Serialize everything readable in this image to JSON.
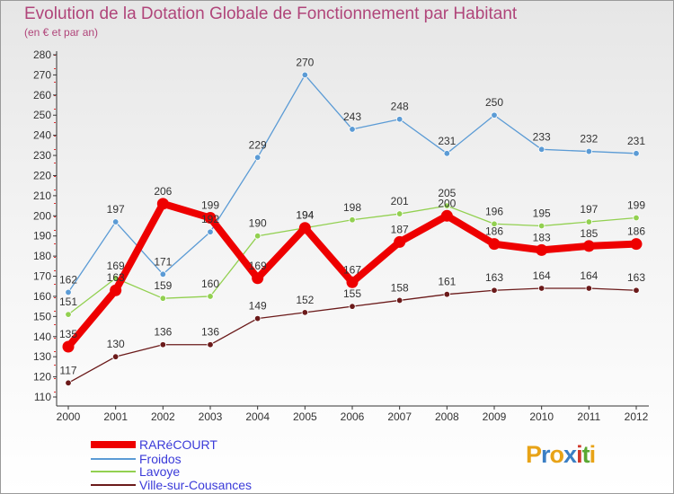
{
  "chart_data": {
    "type": "line",
    "title": "Evolution de la Dotation Globale de Fonctionnement par Habitant",
    "subtitle": "(en € et par an)",
    "x": [
      "2000",
      "2001",
      "2002",
      "2003",
      "2004",
      "2005",
      "2006",
      "2007",
      "2008",
      "2009",
      "2010",
      "2011",
      "2012"
    ],
    "yticks": [
      "110",
      "120",
      "130",
      "140",
      "150",
      "160",
      "170",
      "180",
      "190",
      "200",
      "210",
      "220",
      "230",
      "240",
      "250",
      "260",
      "270",
      "280"
    ],
    "ylim": [
      110,
      280
    ],
    "xlabel": "",
    "ylabel": "",
    "grid": false,
    "series": [
      {
        "name": "RARéCOURT",
        "color": "#ee0000",
        "values": [
          135,
          163,
          206,
          199,
          169,
          194,
          167,
          187,
          200,
          186,
          183,
          185,
          186
        ],
        "labels": [
          "135",
          "163",
          "206",
          "199",
          "169",
          "194",
          "167",
          "187",
          "200",
          "186",
          "183",
          "185",
          "186"
        ]
      },
      {
        "name": "Froidos",
        "color": "#5b9bd5",
        "values": [
          162,
          197,
          171,
          192,
          229,
          270,
          243,
          248,
          231,
          250,
          233,
          232,
          231
        ],
        "labels": [
          "162",
          "197",
          "171",
          "192",
          "229",
          "270",
          "243",
          "248",
          "231",
          "250",
          "233",
          "232",
          "231"
        ]
      },
      {
        "name": "Lavoye",
        "color": "#92d050",
        "values": [
          151,
          169,
          159,
          160,
          190,
          194,
          198,
          201,
          205,
          196,
          195,
          197,
          199
        ],
        "labels": [
          "151",
          "169",
          "159",
          "160",
          "190",
          "194",
          "198",
          "201",
          "205",
          "196",
          "195",
          "197",
          "199"
        ]
      },
      {
        "name": "Ville-sur-Cousances",
        "color": "#6b1a1a",
        "values": [
          117,
          130,
          136,
          136,
          149,
          152,
          155,
          158,
          161,
          163,
          164,
          164,
          163
        ],
        "labels": [
          "117",
          "130",
          "136",
          "136",
          "149",
          "152",
          "155",
          "158",
          "161",
          "163",
          "164",
          "164",
          "163"
        ]
      }
    ]
  },
  "legend": [
    {
      "name": "RARéCOURT",
      "color": "#ee0000"
    },
    {
      "name": "Froidos",
      "color": "#5b9bd5"
    },
    {
      "name": "Lavoye",
      "color": "#92d050"
    },
    {
      "name": "Ville-sur-Cousances",
      "color": "#6b1a1a"
    }
  ],
  "logo": {
    "letters": [
      "P",
      "r",
      "o",
      "x",
      "i",
      "t",
      "i"
    ],
    "colors": [
      "#e8a317",
      "#3b7fc4",
      "#e8a317",
      "#3b7fc4",
      "#d0392b",
      "#5aa832",
      "#e8a317"
    ]
  }
}
